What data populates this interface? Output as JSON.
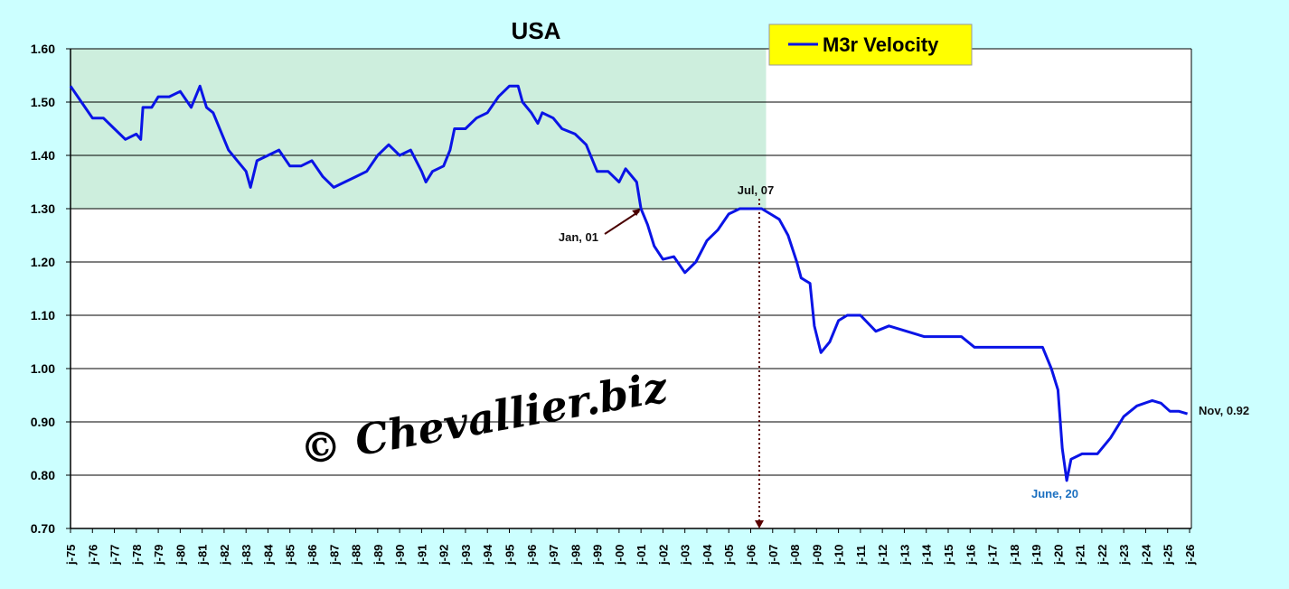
{
  "chart_data": {
    "type": "line",
    "title": "USA",
    "xlabel": "",
    "ylabel": "",
    "ylim": [
      0.7,
      1.6
    ],
    "xlim": [
      1975,
      2026
    ],
    "grid": true,
    "legend": {
      "position": "top-right",
      "entries": [
        "M3r Velocity"
      ]
    },
    "y_ticks": [
      "0.70",
      "0.80",
      "0.90",
      "1.00",
      "1.10",
      "1.20",
      "1.30",
      "1.40",
      "1.50",
      "1.60"
    ],
    "x_ticks": [
      "j-75",
      "j-76",
      "j-77",
      "j-78",
      "j-79",
      "j-80",
      "j-81",
      "j-82",
      "j-83",
      "j-84",
      "j-85",
      "j-86",
      "j-87",
      "j-88",
      "j-89",
      "j-90",
      "j-91",
      "j-92",
      "j-93",
      "j-94",
      "j-95",
      "j-96",
      "j-97",
      "j-98",
      "j-99",
      "j-00",
      "j-01",
      "j-02",
      "j-03",
      "j-04",
      "j-05",
      "j-06",
      "j-07",
      "j-08",
      "j-09",
      "j-10",
      "j-11",
      "j-12",
      "j-13",
      "j-14",
      "j-15",
      "j-16",
      "j-17",
      "j-18",
      "j-19",
      "j-20",
      "j-21",
      "j-22",
      "j-23",
      "j-24",
      "j-25",
      "j-26"
    ],
    "shaded_band": {
      "y_from": 1.3,
      "y_to": 1.6,
      "x_from": 1975,
      "x_to": 2006.7
    },
    "series": [
      {
        "name": "M3r Velocity",
        "color": "#0a14e6",
        "x": [
          1975.0,
          1975.5,
          1976.0,
          1976.5,
          1977.0,
          1977.5,
          1978.0,
          1978.2,
          1978.3,
          1978.7,
          1979.0,
          1979.5,
          1980.0,
          1980.5,
          1980.9,
          1981.2,
          1981.5,
          1981.9,
          1982.2,
          1982.6,
          1983.0,
          1983.2,
          1983.5,
          1984.0,
          1984.5,
          1985.0,
          1985.5,
          1986.0,
          1986.5,
          1987.0,
          1987.5,
          1988.0,
          1988.5,
          1989.0,
          1989.5,
          1990.0,
          1990.5,
          1991.0,
          1991.2,
          1991.5,
          1992.0,
          1992.3,
          1992.5,
          1993.0,
          1993.5,
          1994.0,
          1994.5,
          1995.0,
          1995.4,
          1995.6,
          1996.0,
          1996.3,
          1996.5,
          1997.0,
          1997.4,
          1998.0,
          1998.5,
          1999.0,
          1999.5,
          2000.0,
          2000.3,
          2000.8,
          2001.0,
          2001.3,
          2001.6,
          2002.0,
          2002.5,
          2003.0,
          2003.5,
          2004.0,
          2004.5,
          2005.0,
          2005.5,
          2006.0,
          2006.5,
          2006.9,
          2007.3,
          2007.7,
          2008.1,
          2008.3,
          2008.7,
          2008.9,
          2009.2,
          2009.6,
          2010.0,
          2010.4,
          2011.0,
          2011.7,
          2012.3,
          2013.1,
          2013.9,
          2014.7,
          2015.6,
          2016.2,
          2017.2,
          2018.3,
          2019.3,
          2019.7,
          2020.0,
          2020.2,
          2020.4,
          2020.6,
          2021.1,
          2021.8,
          2022.4,
          2023.0,
          2023.6,
          2024.3,
          2024.7,
          2025.1,
          2025.5,
          2025.9
        ],
        "y": [
          1.53,
          1.5,
          1.47,
          1.47,
          1.45,
          1.43,
          1.44,
          1.43,
          1.49,
          1.49,
          1.51,
          1.51,
          1.52,
          1.49,
          1.53,
          1.49,
          1.48,
          1.44,
          1.41,
          1.39,
          1.37,
          1.34,
          1.39,
          1.4,
          1.41,
          1.38,
          1.38,
          1.39,
          1.36,
          1.34,
          1.35,
          1.36,
          1.37,
          1.4,
          1.42,
          1.4,
          1.41,
          1.37,
          1.35,
          1.37,
          1.38,
          1.41,
          1.45,
          1.45,
          1.47,
          1.48,
          1.51,
          1.53,
          1.53,
          1.5,
          1.48,
          1.46,
          1.48,
          1.47,
          1.45,
          1.44,
          1.42,
          1.37,
          1.37,
          1.35,
          1.375,
          1.35,
          1.3,
          1.27,
          1.23,
          1.205,
          1.21,
          1.18,
          1.2,
          1.24,
          1.26,
          1.29,
          1.3,
          1.3,
          1.3,
          1.29,
          1.28,
          1.25,
          1.2,
          1.17,
          1.16,
          1.08,
          1.03,
          1.05,
          1.09,
          1.1,
          1.1,
          1.07,
          1.08,
          1.07,
          1.06,
          1.06,
          1.06,
          1.04,
          1.04,
          1.04,
          1.04,
          1.0,
          0.96,
          0.85,
          0.79,
          0.83,
          0.84,
          0.84,
          0.87,
          0.91,
          0.93,
          0.94,
          0.935,
          0.92,
          0.92,
          0.915
        ]
      }
    ],
    "annotations": [
      {
        "text": "Jan, 01",
        "x": 2001.0,
        "y": 1.3
      },
      {
        "text": "Jul, 07",
        "x": 2006.5,
        "y": 1.31
      },
      {
        "text": "June, 20",
        "x": 2020.4,
        "y": 0.79
      },
      {
        "text": "Nov, 0.92",
        "x": 2025.9,
        "y": 0.915
      }
    ],
    "watermark": "© Chevallier.biz"
  }
}
